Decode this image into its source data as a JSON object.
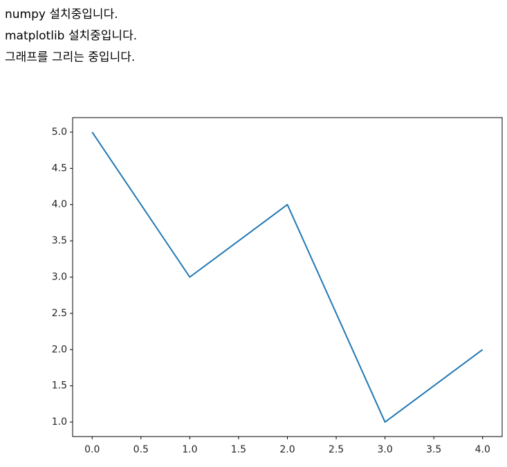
{
  "output": {
    "lines": [
      "numpy 설치중입니다.",
      "matplotlib 설치중입니다.",
      "그래프를 그리는 중입니다."
    ]
  },
  "chart_data": {
    "type": "line",
    "x": [
      0,
      1,
      2,
      3,
      4
    ],
    "values": [
      5,
      3,
      4,
      1,
      2
    ],
    "color": "#1f77b4",
    "xlim": [
      -0.2,
      4.2
    ],
    "ylim": [
      0.8,
      5.2
    ],
    "xticks": [
      {
        "value": 0,
        "label": "0.0"
      },
      0.5,
      {
        "value": 1,
        "label": "1.0"
      },
      1.5,
      {
        "value": 2,
        "label": "2.0"
      },
      2.5,
      {
        "value": 3,
        "label": "3.0"
      },
      3.5,
      {
        "value": 4,
        "label": "4.0"
      }
    ],
    "yticks": [
      {
        "value": 1,
        "label": "1.0"
      },
      1.5,
      {
        "value": 2,
        "label": "2.0"
      },
      2.5,
      {
        "value": 3,
        "label": "3.0"
      },
      3.5,
      {
        "value": 4,
        "label": "4.0"
      },
      4.5,
      {
        "value": 5,
        "label": "5.0"
      }
    ]
  }
}
